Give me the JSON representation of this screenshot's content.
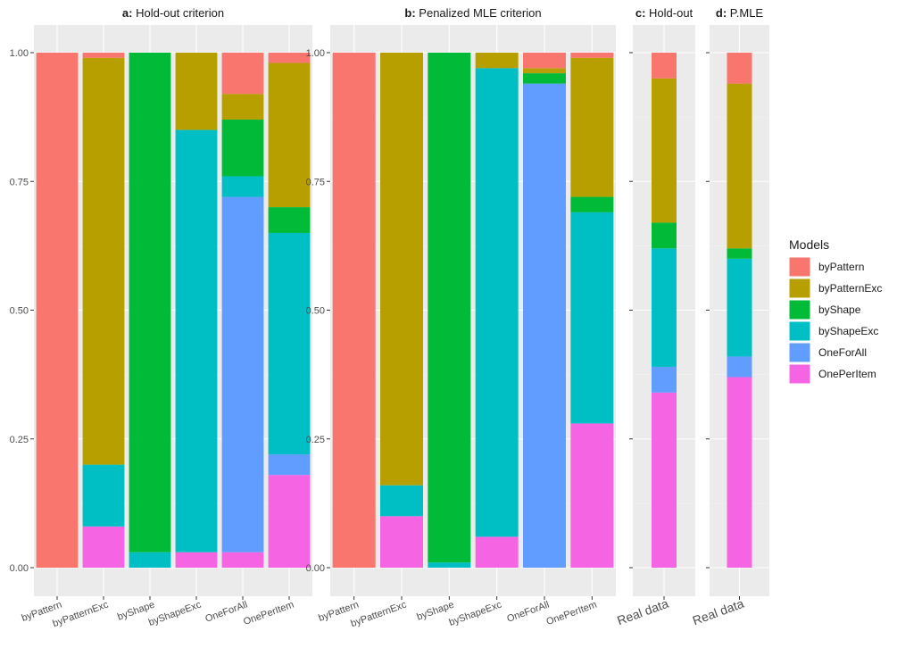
{
  "legend": {
    "title": "Models",
    "items": [
      {
        "name": "byPattern",
        "color": "#F8766D"
      },
      {
        "name": "byPatternExc",
        "color": "#B79F00"
      },
      {
        "name": "byShape",
        "color": "#00BA38"
      },
      {
        "name": "byShapeExc",
        "color": "#00BFC4"
      },
      {
        "name": "OneForAll",
        "color": "#619CFF"
      },
      {
        "name": "OnePerItem",
        "color": "#F564E3"
      }
    ]
  },
  "chart_data": [
    {
      "type": "bar",
      "stacked": true,
      "panel_letter": "a:",
      "panel_title": "Hold-out criterion",
      "categories": [
        "byPattern",
        "byPatternExc",
        "byShape",
        "byShapeExc",
        "OneForAll",
        "OnePerItem"
      ],
      "y_ticks": [
        "0.00",
        "0.25",
        "0.50",
        "0.75",
        "1.00"
      ],
      "ylim": [
        0,
        1
      ],
      "series": [
        {
          "name": "OnePerItem",
          "values": [
            0,
            0.08,
            0,
            0.03,
            0.03,
            0.18
          ]
        },
        {
          "name": "OneForAll",
          "values": [
            0,
            0,
            0,
            0,
            0.69,
            0.04
          ]
        },
        {
          "name": "byShapeExc",
          "values": [
            0,
            0.12,
            0.03,
            0.82,
            0.04,
            0.43
          ]
        },
        {
          "name": "byShape",
          "values": [
            0,
            0,
            0.97,
            0,
            0.11,
            0.05
          ]
        },
        {
          "name": "byPatternExc",
          "values": [
            0,
            0.79,
            0,
            0.15,
            0.05,
            0.28
          ]
        },
        {
          "name": "byPattern",
          "values": [
            1.0,
            0.01,
            0,
            0,
            0.08,
            0.02
          ]
        }
      ]
    },
    {
      "type": "bar",
      "stacked": true,
      "panel_letter": "b:",
      "panel_title": "Penalized MLE criterion",
      "categories": [
        "byPattern",
        "byPatternExc",
        "byShape",
        "byShapeExc",
        "OneForAll",
        "OnePerItem"
      ],
      "y_ticks": [
        "0.00",
        "0.25",
        "0.50",
        "0.75",
        "1.00"
      ],
      "ylim": [
        0,
        1
      ],
      "series": [
        {
          "name": "OnePerItem",
          "values": [
            0,
            0.1,
            0,
            0.06,
            0,
            0.28
          ]
        },
        {
          "name": "OneForAll",
          "values": [
            0,
            0,
            0,
            0,
            0.94,
            0
          ]
        },
        {
          "name": "byShapeExc",
          "values": [
            0,
            0.06,
            0.01,
            0.91,
            0,
            0.41
          ]
        },
        {
          "name": "byShape",
          "values": [
            0,
            0,
            0.99,
            0,
            0.02,
            0.03
          ]
        },
        {
          "name": "byPatternExc",
          "values": [
            0,
            0.84,
            0,
            0.03,
            0.01,
            0.27
          ]
        },
        {
          "name": "byPattern",
          "values": [
            1.0,
            0,
            0,
            0,
            0.03,
            0.01
          ]
        }
      ]
    },
    {
      "type": "bar",
      "stacked": true,
      "panel_letter": "c:",
      "panel_title": "Hold-out",
      "categories": [
        "Real data"
      ],
      "y_ticks": [
        "",
        "",
        "",
        "",
        ""
      ],
      "ylim": [
        0,
        1
      ],
      "series": [
        {
          "name": "OnePerItem",
          "values": [
            0.34
          ]
        },
        {
          "name": "OneForAll",
          "values": [
            0.05
          ]
        },
        {
          "name": "byShapeExc",
          "values": [
            0.23
          ]
        },
        {
          "name": "byShape",
          "values": [
            0.05
          ]
        },
        {
          "name": "byPatternExc",
          "values": [
            0.28
          ]
        },
        {
          "name": "byPattern",
          "values": [
            0.05
          ]
        }
      ]
    },
    {
      "type": "bar",
      "stacked": true,
      "panel_letter": "d:",
      "panel_title": "P.MLE",
      "categories": [
        "Real data"
      ],
      "y_ticks": [
        "",
        "",
        "",
        "",
        ""
      ],
      "ylim": [
        0,
        1
      ],
      "series": [
        {
          "name": "OnePerItem",
          "values": [
            0.37
          ]
        },
        {
          "name": "OneForAll",
          "values": [
            0.04
          ]
        },
        {
          "name": "byShapeExc",
          "values": [
            0.19
          ]
        },
        {
          "name": "byShape",
          "values": [
            0.02
          ]
        },
        {
          "name": "byPatternExc",
          "values": [
            0.32
          ]
        },
        {
          "name": "byPattern",
          "values": [
            0.06
          ]
        }
      ]
    }
  ]
}
